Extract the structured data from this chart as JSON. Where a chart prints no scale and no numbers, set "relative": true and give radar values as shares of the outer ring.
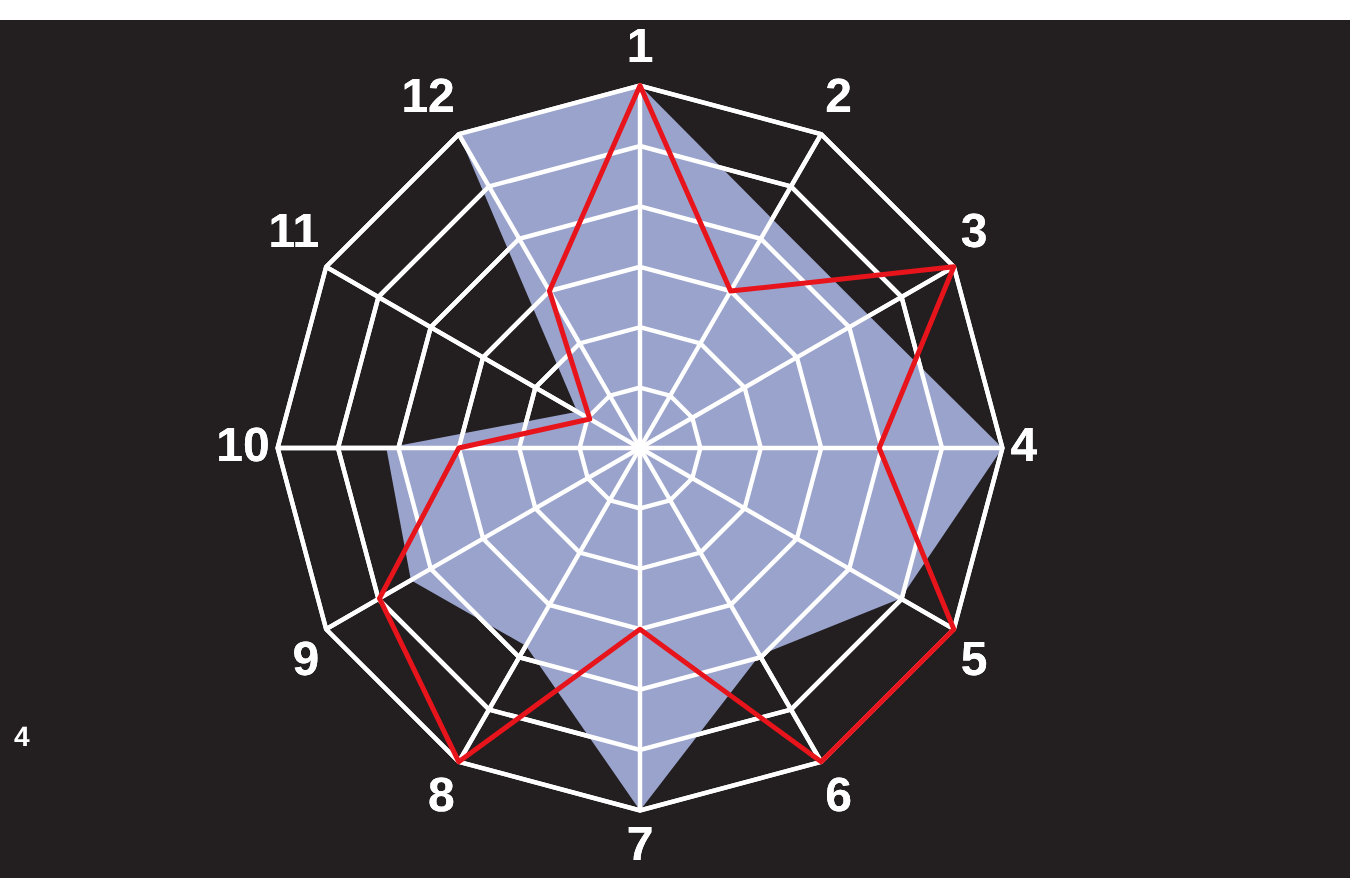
{
  "chart_data": {
    "type": "radar",
    "relative": true,
    "categories": [
      "1",
      "2",
      "3",
      "4",
      "5",
      "6",
      "7",
      "8",
      "9",
      "10",
      "11",
      "12"
    ],
    "series": [
      {
        "type": "area",
        "color": "#9aa3cc",
        "values": [
          1,
          0.73,
          0.73,
          1,
          0.83,
          0.66,
          1,
          0.63,
          0.73,
          0.7,
          0.2,
          1
        ]
      },
      {
        "color": "#e8141c",
        "values": [
          1,
          0.5,
          1,
          0.66,
          1,
          1,
          0.5,
          1,
          0.83,
          0.5,
          0.16,
          0.5
        ]
      }
    ],
    "grid": true,
    "legend": false,
    "marker": "none",
    "line_style": "solid",
    "annotations": [
      "4"
    ]
  }
}
